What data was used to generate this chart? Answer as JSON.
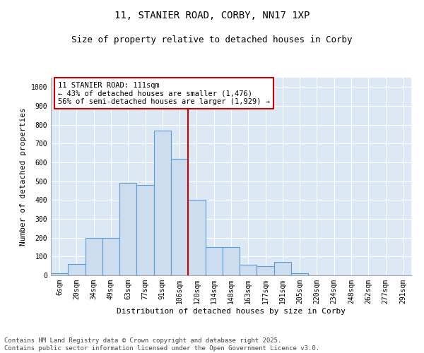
{
  "title1": "11, STANIER ROAD, CORBY, NN17 1XP",
  "title2": "Size of property relative to detached houses in Corby",
  "xlabel": "Distribution of detached houses by size in Corby",
  "ylabel": "Number of detached properties",
  "categories": [
    "6sqm",
    "20sqm",
    "34sqm",
    "49sqm",
    "63sqm",
    "77sqm",
    "91sqm",
    "106sqm",
    "120sqm",
    "134sqm",
    "148sqm",
    "163sqm",
    "177sqm",
    "191sqm",
    "205sqm",
    "220sqm",
    "234sqm",
    "248sqm",
    "262sqm",
    "277sqm",
    "291sqm"
  ],
  "values": [
    10,
    60,
    200,
    200,
    490,
    480,
    770,
    620,
    400,
    150,
    150,
    55,
    50,
    70,
    10,
    0,
    0,
    0,
    0,
    0,
    0
  ],
  "bar_color": "#ccddf0",
  "bar_edge_color": "#5b9bd5",
  "annotation_text": "11 STANIER ROAD: 111sqm\n← 43% of detached houses are smaller (1,476)\n56% of semi-detached houses are larger (1,929) →",
  "annotation_box_color": "#ffffff",
  "annotation_box_edge_color": "#cc0000",
  "vline_color": "#cc0000",
  "vline_x_index": 7,
  "ylim": [
    0,
    1050
  ],
  "yticks": [
    0,
    100,
    200,
    300,
    400,
    500,
    600,
    700,
    800,
    900,
    1000
  ],
  "background_color": "#dce9f5",
  "footer_text": "Contains HM Land Registry data © Crown copyright and database right 2025.\nContains public sector information licensed under the Open Government Licence v3.0.",
  "title_fontsize": 10,
  "subtitle_fontsize": 9,
  "axis_fontsize": 8,
  "tick_fontsize": 7,
  "annot_fontsize": 7.5,
  "footer_fontsize": 6.5
}
